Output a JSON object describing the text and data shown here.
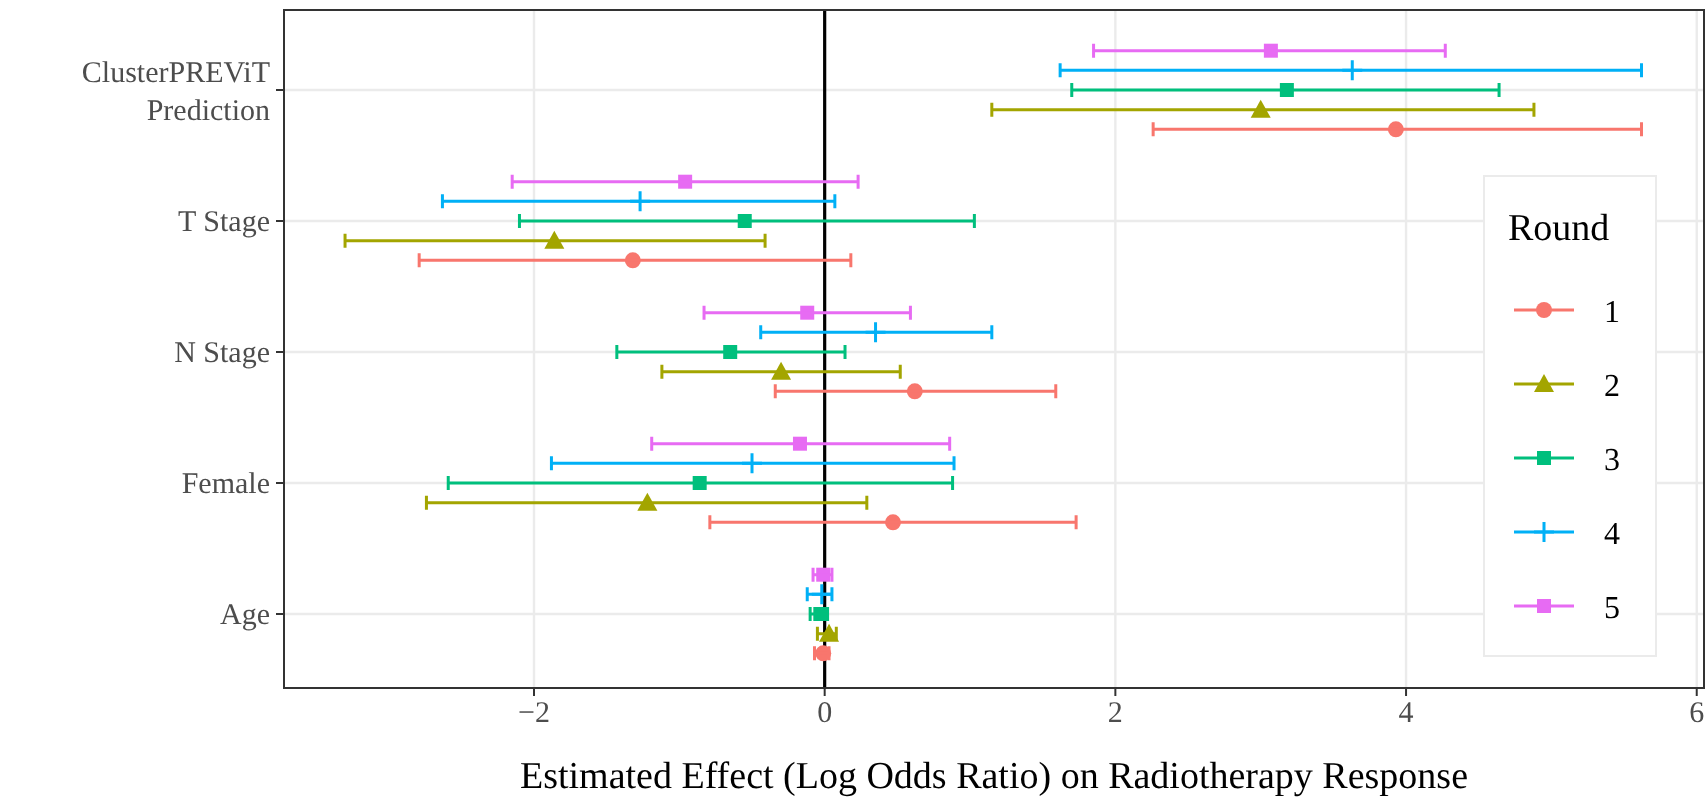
{
  "chart_data": {
    "type": "scatter",
    "orientation": "horizontal",
    "xlabel": "Estimated Effect (Log Odds Ratio) on Radiotherapy Response",
    "legend_title": "Round",
    "legend": "right",
    "grid": true,
    "categories": [
      "ClusterPREViT Prediction",
      "T Stage",
      "N Stage",
      "Female",
      "Age"
    ],
    "xlim": [
      -3.72,
      6.05
    ],
    "xticks": [
      {
        "value": -2,
        "label": "−2"
      },
      0,
      2,
      4,
      6
    ],
    "ref_lines": [
      {
        "axis": "x",
        "value": 0,
        "color": "#000000"
      }
    ],
    "series": [
      {
        "name": "1",
        "color": "#f8766d",
        "marker": "circle",
        "values": [
          3.93,
          -1.32,
          0.62,
          0.47,
          -0.01
        ],
        "errors": [
          [
            2.26,
            5.62
          ],
          [
            -2.79,
            0.18
          ],
          [
            -0.34,
            1.59
          ],
          [
            -0.79,
            1.73
          ],
          [
            -0.07,
            0.03
          ]
        ]
      },
      {
        "name": "2",
        "color": "#a3a500",
        "marker": "triangle",
        "values": [
          3.0,
          -1.86,
          -0.3,
          -1.22,
          0.03
        ],
        "errors": [
          [
            1.15,
            4.88
          ],
          [
            -3.3,
            -0.41
          ],
          [
            -1.12,
            0.52
          ],
          [
            -2.74,
            0.29
          ],
          [
            -0.05,
            0.08
          ]
        ]
      },
      {
        "name": "3",
        "color": "#00bf7d",
        "marker": "square",
        "values": [
          3.18,
          -0.55,
          -0.65,
          -0.86,
          -0.03
        ],
        "errors": [
          [
            1.7,
            4.64
          ],
          [
            -2.1,
            1.03
          ],
          [
            -1.43,
            0.14
          ],
          [
            -2.59,
            0.88
          ],
          [
            -0.1,
            0.02
          ]
        ]
      },
      {
        "name": "4",
        "color": "#00b0f6",
        "marker": "cross",
        "values": [
          3.63,
          -1.27,
          0.35,
          -0.5,
          -0.02
        ],
        "errors": [
          [
            1.62,
            5.62
          ],
          [
            -2.63,
            0.07
          ],
          [
            -0.44,
            1.15
          ],
          [
            -1.88,
            0.89
          ],
          [
            -0.12,
            0.05
          ]
        ]
      },
      {
        "name": "5",
        "color": "#e76bf3",
        "marker": "square",
        "values": [
          3.07,
          -0.96,
          -0.12,
          -0.17,
          -0.01
        ],
        "errors": [
          [
            1.85,
            4.27
          ],
          [
            -2.15,
            0.23
          ],
          [
            -0.83,
            0.59
          ],
          [
            -1.19,
            0.86
          ],
          [
            -0.08,
            0.05
          ]
        ]
      }
    ]
  }
}
